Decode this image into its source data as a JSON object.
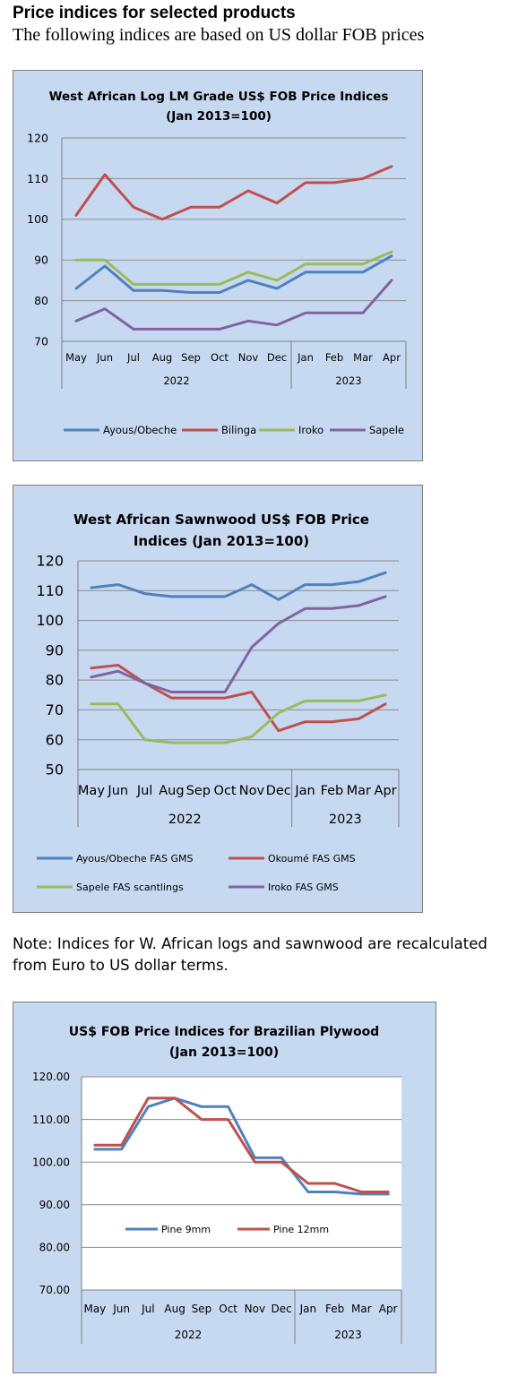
{
  "page": {
    "heading": "Price indices for selected products",
    "subheading": "The following indices are based on US dollar FOB prices",
    "note": "Note: Indices for W. African logs and sawnwood are recalculated from Euro to US dollar terms."
  },
  "chart_data": [
    {
      "type": "line",
      "title_lines": [
        "West African Log LM Grade US$ FOB Price Indices",
        "(Jan 2013=100)"
      ],
      "categories": [
        "May",
        "Jun",
        "Jul",
        "Aug",
        "Sep",
        "Oct",
        "Nov",
        "Dec",
        "Jan",
        "Feb",
        "Mar",
        "Apr"
      ],
      "year_groups": [
        {
          "label": "2022",
          "start": 0,
          "end": 7
        },
        {
          "label": "2023",
          "start": 8,
          "end": 11
        }
      ],
      "ylim": [
        70,
        120
      ],
      "yticks": [
        70,
        80,
        90,
        100,
        110,
        120
      ],
      "ytick_labels": [
        "70",
        "80",
        "90",
        "100",
        "110",
        "120"
      ],
      "grid": true,
      "legend_position": "bottom",
      "series": [
        {
          "name": "Ayous/Obeche",
          "color": "#4f81bd",
          "values": [
            83,
            88.5,
            82.5,
            82.5,
            82,
            82,
            85,
            83,
            87,
            87,
            87,
            91
          ]
        },
        {
          "name": "Bilinga",
          "color": "#c0504d",
          "values": [
            101,
            111,
            103,
            100,
            103,
            103,
            107,
            104,
            109,
            109,
            110,
            113
          ]
        },
        {
          "name": "Iroko",
          "color": "#9bbb59",
          "values": [
            90,
            90,
            84,
            84,
            84,
            84,
            87,
            85,
            89,
            89,
            89,
            92
          ]
        },
        {
          "name": "Sapele",
          "color": "#8064a2",
          "values": [
            75,
            78,
            73,
            73,
            73,
            73,
            75,
            74,
            77,
            77,
            77,
            85
          ]
        }
      ]
    },
    {
      "type": "line",
      "title_lines": [
        "West African Sawnwood US$ FOB Price",
        "Indices (Jan 2013=100)"
      ],
      "categories": [
        "May",
        "Jun",
        "Jul",
        "Aug",
        "Sep",
        "Oct",
        "Nov",
        "Dec",
        "Jan",
        "Feb",
        "Mar",
        "Apr"
      ],
      "year_groups": [
        {
          "label": "2022",
          "start": 0,
          "end": 7
        },
        {
          "label": "2023",
          "start": 8,
          "end": 11
        }
      ],
      "ylim": [
        50,
        120
      ],
      "yticks": [
        50,
        60,
        70,
        80,
        90,
        100,
        110,
        120
      ],
      "ytick_labels": [
        "50",
        "60",
        "70",
        "80",
        "90",
        "100",
        "110",
        "120"
      ],
      "grid": true,
      "legend_position": "bottom",
      "series": [
        {
          "name": "Ayous/Obeche  FAS GMS",
          "color": "#4f81bd",
          "values": [
            111,
            112,
            109,
            108,
            108,
            108,
            112,
            107,
            112,
            112,
            113,
            116
          ]
        },
        {
          "name": "Okoumé  FAS GMS",
          "color": "#c0504d",
          "values": [
            84,
            85,
            79,
            74,
            74,
            74,
            76,
            63,
            66,
            66,
            67,
            72
          ]
        },
        {
          "name": "Sapele FAS scantlings",
          "color": "#9bbb59",
          "values": [
            72,
            72,
            60,
            59,
            59,
            59,
            61,
            69,
            73,
            73,
            73,
            75
          ]
        },
        {
          "name": "Iroko FAS GMS",
          "color": "#8064a2",
          "values": [
            81,
            83,
            79,
            76,
            76,
            76,
            91,
            99,
            104,
            104,
            105,
            108
          ]
        }
      ]
    },
    {
      "type": "line",
      "title_lines": [
        "US$ FOB Price Indices for Brazilian Plywood",
        "(Jan 2013=100)"
      ],
      "categories": [
        "May",
        "Jun",
        "Jul",
        "Aug",
        "Sep",
        "Oct",
        "Nov",
        "Dec",
        "Jan",
        "Feb",
        "Mar",
        "Apr"
      ],
      "year_groups": [
        {
          "label": "2022",
          "start": 0,
          "end": 7
        },
        {
          "label": "2023",
          "start": 8,
          "end": 11
        }
      ],
      "ylim": [
        70,
        120
      ],
      "yticks": [
        70,
        80,
        90,
        100,
        110,
        120
      ],
      "ytick_labels": [
        "70.00",
        "80.00",
        "90.00",
        "100.00",
        "110.00",
        "120.00"
      ],
      "grid": true,
      "legend_position": "inside lower-left",
      "series": [
        {
          "name": "Pine 9mm",
          "color": "#4f81bd",
          "values": [
            103,
            103,
            113,
            115,
            113,
            113,
            101,
            101,
            93,
            93,
            92.5,
            92.5
          ]
        },
        {
          "name": "Pine 12mm",
          "color": "#c0504d",
          "values": [
            104,
            104,
            115,
            115,
            110,
            110,
            100,
            100,
            95,
            95,
            93,
            93
          ]
        }
      ]
    }
  ]
}
